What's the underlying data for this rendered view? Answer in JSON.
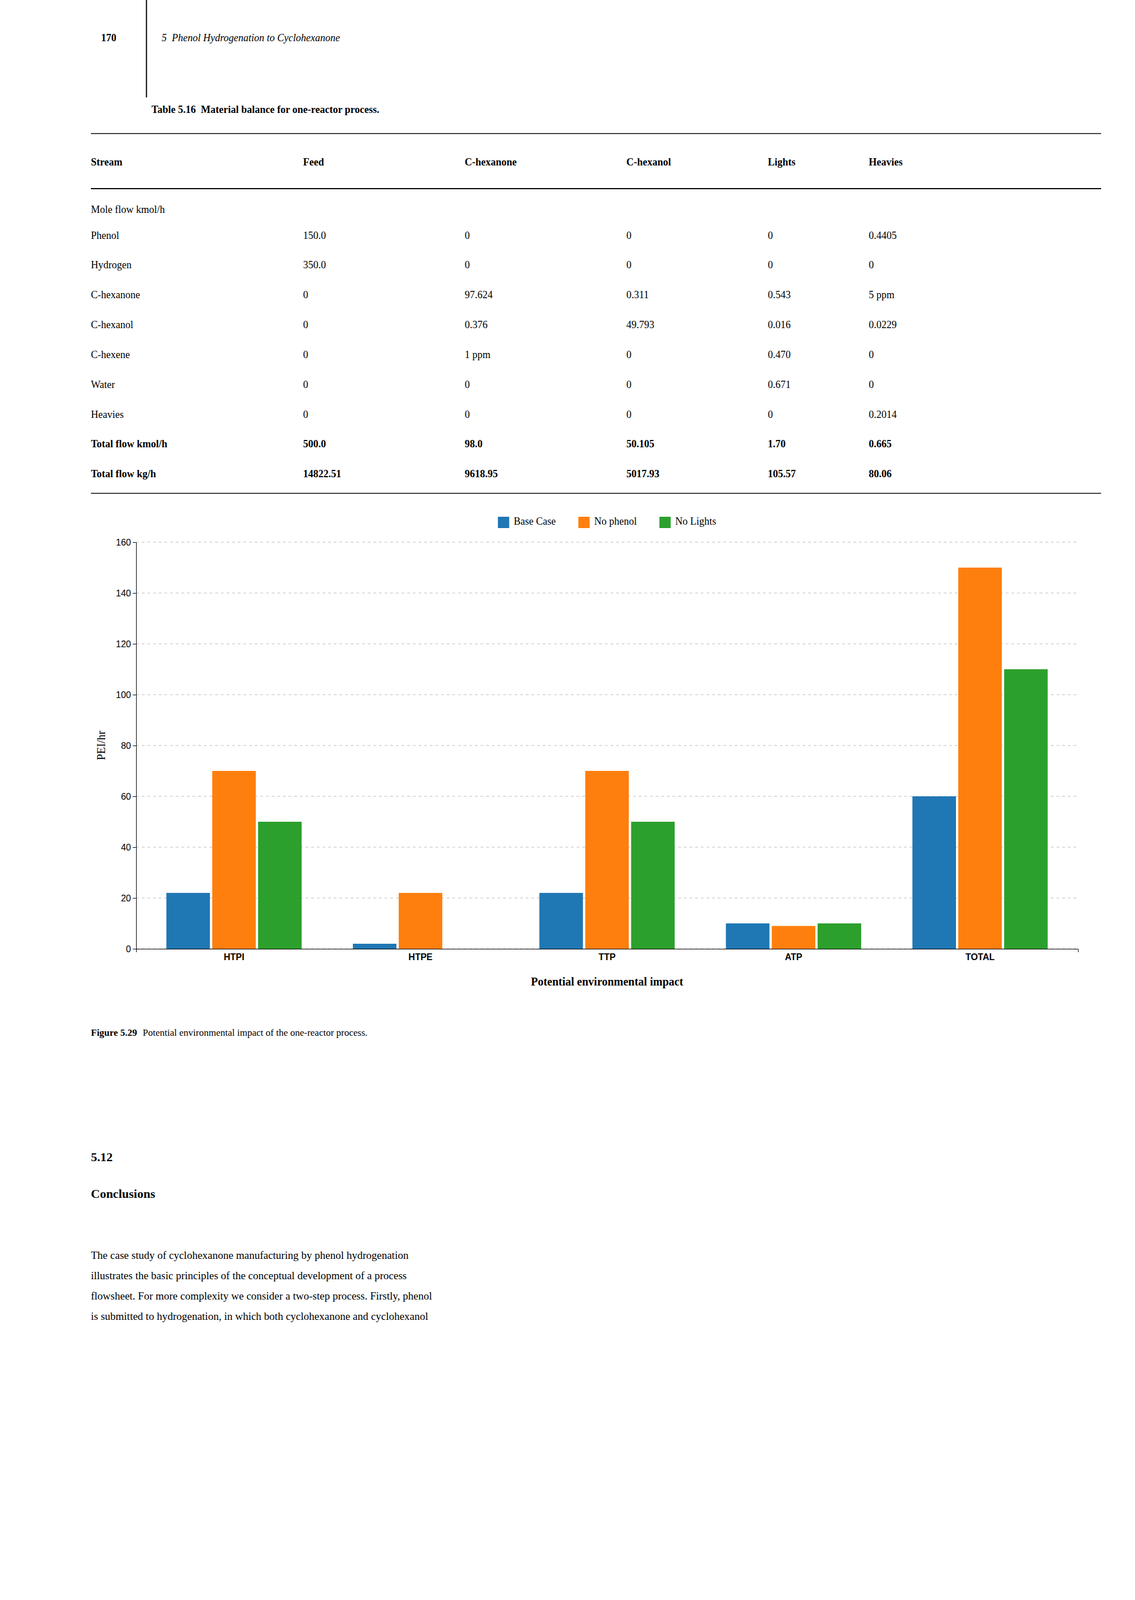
{
  "page_number": "170",
  "chapter_header": "5  Phenol Hydrogenation to Cyclohexanone",
  "table": {
    "title": "Table 5.16  Material balance for one-reactor process.",
    "headers": [
      "Stream",
      "Feed",
      "C-hexanone",
      "C-hexanol",
      "Lights",
      "Heavies"
    ],
    "section_header": "Mole flow kmol/h",
    "rows": [
      [
        "Phenol",
        "150.0",
        "0",
        "0",
        "0",
        "0.4405"
      ],
      [
        "Hydrogen",
        "350.0",
        "0",
        "0",
        "0",
        "0"
      ],
      [
        "C-hexanone",
        "0",
        "97.624",
        "0.311",
        "0.543",
        "5 ppm"
      ],
      [
        "C-hexanol",
        "0",
        "0.376",
        "49.793",
        "0.016",
        "0.0229"
      ],
      [
        "C-hexene",
        "0",
        "1 ppm",
        "0",
        "0.470",
        "0"
      ],
      [
        "Water",
        "0",
        "0",
        "0",
        "0.671",
        "0"
      ],
      [
        "Heavies",
        "0",
        "0",
        "0",
        "0",
        "0.2014"
      ],
      [
        "Total flow kmol/h",
        "500.0",
        "98.0",
        "50.105",
        "1.70",
        "0.665"
      ],
      [
        "Total flow kg/h",
        "14822.51",
        "9618.95",
        "5017.93",
        "105.57",
        "80.06"
      ]
    ]
  },
  "figure_caption": {
    "label": "Figure 5.29",
    "text": "Potential environmental impact of the one-reactor process."
  },
  "section": {
    "number": "5.12",
    "title": "Conclusions",
    "body_lines": [
      "The case study of cyclohexanone manufacturing by phenol hydrogenation",
      "illustrates the basic principles of the conceptual development of a process",
      "flowsheet. For more complexity we consider a two-step process. Firstly, phenol",
      "is submitted to hydrogenation, in which both cyclohexanone and cyclohexanol"
    ]
  },
  "chart_data": {
    "type": "bar",
    "xlabel": "Potential environmental impact",
    "ylabel": "PEI/hr",
    "categories": [
      "HTPI",
      "HTPE",
      "TTP",
      "ATP",
      "TOTAL"
    ],
    "series": [
      {
        "name": "Base Case",
        "values": [
          22,
          2,
          22,
          10,
          60
        ]
      },
      {
        "name": "No phenol",
        "values": [
          70,
          22,
          70,
          9,
          150
        ]
      },
      {
        "name": "No Lights",
        "values": [
          50,
          0,
          50,
          10,
          110
        ]
      }
    ],
    "ylim": [
      0,
      160
    ],
    "yticks": [
      0,
      20,
      40,
      60,
      80,
      100,
      120,
      140,
      160
    ],
    "grid": true,
    "legend": "top"
  }
}
